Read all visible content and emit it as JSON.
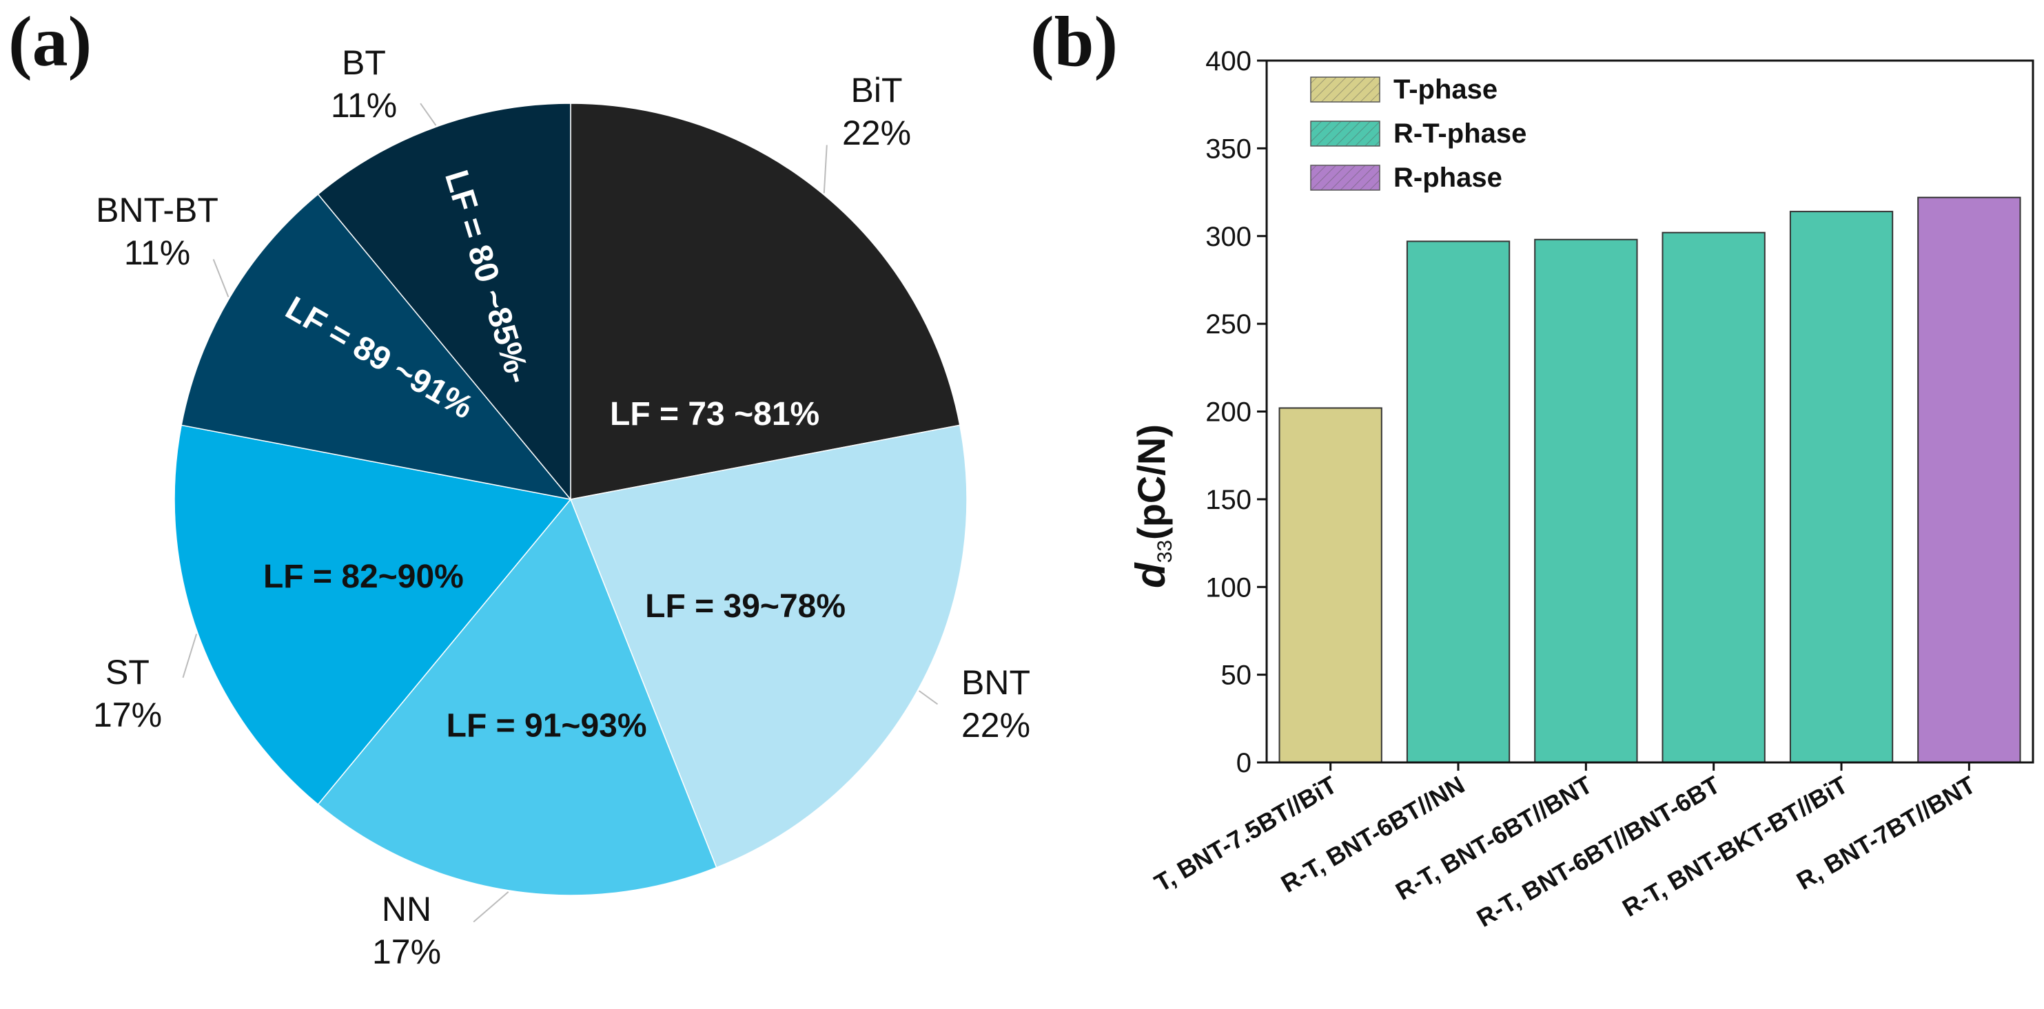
{
  "panels": {
    "a": "(a)",
    "b": "(b)"
  },
  "chart_data": [
    {
      "type": "pie",
      "slices": [
        {
          "name": "BiT",
          "percent": 22,
          "percent_label": "22%",
          "inner_label": "LF = 73 ~81%",
          "color": "#222222",
          "text_color": "#ffffff"
        },
        {
          "name": "BNT",
          "percent": 22,
          "percent_label": "22%",
          "inner_label": "LF = 39~78%",
          "color": "#b3e3f4",
          "text_color": "#111111"
        },
        {
          "name": "NN",
          "percent": 17,
          "percent_label": "17%",
          "inner_label": "LF = 91~93%",
          "color": "#4cc9ee",
          "text_color": "#111111"
        },
        {
          "name": "ST",
          "percent": 17,
          "percent_label": "17%",
          "inner_label": "LF = 82~90%",
          "color": "#00ade5",
          "text_color": "#111111"
        },
        {
          "name": "BNT-BT",
          "percent": 11,
          "percent_label": "11%",
          "inner_label": "LF = 89 ~91%",
          "color": "#004466",
          "text_color": "#ffffff"
        },
        {
          "name": "BT",
          "percent": 11,
          "percent_label": "11%",
          "inner_label": "LF = 80 ~85%-",
          "color": "#022a40",
          "text_color": "#ffffff"
        }
      ]
    },
    {
      "type": "bar",
      "ylabel_main": "d",
      "ylabel_sub": "33",
      "ylabel_rest": "(pC/N)",
      "ylim": [
        0,
        400
      ],
      "yticks": [
        0,
        50,
        100,
        150,
        200,
        250,
        300,
        350,
        400
      ],
      "categories": [
        "T, BNT-7.5BT//BiT",
        "R-T, BNT-6BT//NN",
        "R-T, BNT-6BT//BNT",
        "R-T, BNT-6BT//BNT-6BT",
        "R-T, BNT-BKT-BT//BiT",
        "R, BNT-7BT//BNT"
      ],
      "values": [
        202,
        297,
        298,
        302,
        314,
        322
      ],
      "phase": [
        "T-phase",
        "R-T-phase",
        "R-T-phase",
        "R-T-phase",
        "R-T-phase",
        "R-phase"
      ],
      "legend": [
        {
          "name": "T-phase",
          "color": "#d6cf8a"
        },
        {
          "name": "R-T-phase",
          "color": "#4fc6ad"
        },
        {
          "name": "R-phase",
          "color": "#b07fca"
        }
      ],
      "legend_position": "top-left"
    }
  ]
}
